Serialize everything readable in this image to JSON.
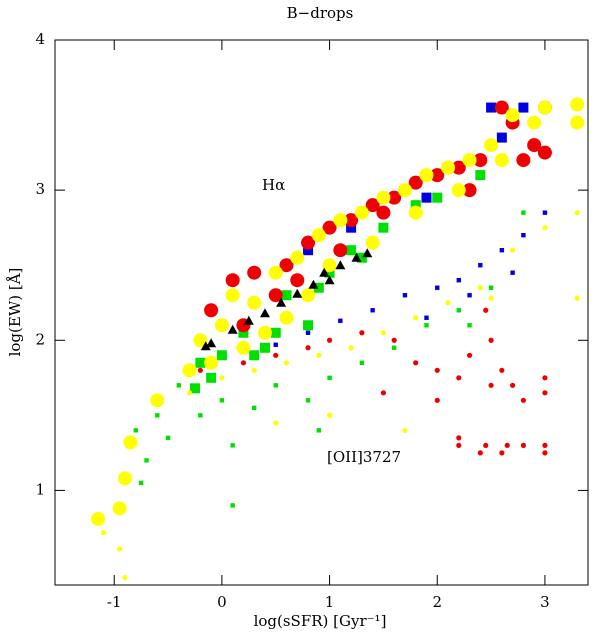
{
  "chart_data": {
    "type": "scatter",
    "title": "B−drops",
    "x_label": "log(sSFR)  [Gyr⁻¹]",
    "y_label": "log(EW)  [Å]",
    "annotations": [
      "Hα",
      "[OII]3727"
    ],
    "xlim": [
      -1.55,
      3.4
    ],
    "ylim": [
      0.37,
      4
    ],
    "xticks": [
      -1,
      0,
      1,
      2,
      3
    ],
    "yticks": [
      1,
      2,
      3,
      4
    ],
    "series": [
      {
        "color": "#00e000",
        "marker": "square",
        "size": "large",
        "x": [
          -0.3,
          -0.2,
          -0.1,
          0.0,
          0.2,
          0.4,
          0.6,
          0.8,
          1.0,
          1.2,
          1.5,
          1.8,
          2.0,
          2.4,
          2.7,
          0.5,
          0.9,
          -0.25,
          0.3,
          1.3
        ],
        "y": [
          1.8,
          1.85,
          1.75,
          1.9,
          2.05,
          1.95,
          2.3,
          2.1,
          2.45,
          2.6,
          2.75,
          2.9,
          2.95,
          3.1,
          3.45,
          2.05,
          2.35,
          1.68,
          1.9,
          2.55
        ]
      },
      {
        "color": "#0000e0",
        "marker": "square",
        "size": "large",
        "x": [
          0.8,
          1.2,
          1.6,
          2.0,
          2.3,
          2.6,
          2.8,
          1.9,
          2.5
        ],
        "y": [
          2.6,
          2.75,
          2.95,
          3.1,
          3.2,
          3.35,
          3.55,
          2.95,
          3.55
        ]
      },
      {
        "color": "#ee0000",
        "marker": "circle",
        "size": "large",
        "x": [
          -0.1,
          0.1,
          0.3,
          0.5,
          0.6,
          0.8,
          1.0,
          1.2,
          1.4,
          1.6,
          1.8,
          2.0,
          2.2,
          2.4,
          2.6,
          2.7,
          2.9,
          3.0,
          3.0,
          0.2,
          0.7,
          1.1,
          1.5,
          2.3,
          2.8
        ],
        "y": [
          2.2,
          2.4,
          2.45,
          2.3,
          2.5,
          2.65,
          2.75,
          2.8,
          2.9,
          2.95,
          3.05,
          3.1,
          3.15,
          3.2,
          3.55,
          3.45,
          3.3,
          3.25,
          3.55,
          2.1,
          2.4,
          2.6,
          2.85,
          3.0,
          3.2
        ]
      },
      {
        "color": "#ffff00",
        "marker": "circle",
        "size": "large",
        "x": [
          -1.15,
          -0.95,
          -0.9,
          -0.85,
          -0.6,
          -0.3,
          -0.2,
          0.0,
          0.1,
          0.3,
          0.5,
          0.7,
          0.9,
          1.1,
          1.3,
          1.5,
          1.7,
          1.9,
          2.1,
          2.3,
          2.5,
          2.7,
          2.9,
          3.0,
          3.3,
          3.3,
          0.2,
          0.6,
          1.0,
          1.4,
          1.8,
          2.2,
          2.6,
          -0.1,
          0.4,
          0.8
        ],
        "y": [
          0.81,
          0.88,
          1.08,
          1.32,
          1.6,
          1.8,
          2.0,
          2.1,
          2.3,
          2.25,
          2.45,
          2.55,
          2.7,
          2.8,
          2.85,
          2.95,
          3.0,
          3.1,
          3.15,
          3.2,
          3.3,
          3.5,
          3.45,
          3.55,
          3.45,
          3.57,
          1.95,
          2.15,
          2.5,
          2.65,
          2.85,
          3.0,
          3.2,
          1.85,
          2.05,
          2.3
        ]
      },
      {
        "color": "#00e000",
        "marker": "square",
        "size": "small",
        "x": [
          -0.8,
          -0.7,
          -0.6,
          -0.5,
          -0.4,
          -0.2,
          0.0,
          0.1,
          0.3,
          0.5,
          0.8,
          1.0,
          1.3,
          1.6,
          1.9,
          2.2,
          2.5,
          2.8,
          -0.75,
          0.1,
          0.9,
          2.3
        ],
        "y": [
          1.4,
          1.2,
          1.5,
          1.35,
          1.7,
          1.5,
          1.6,
          0.9,
          1.55,
          1.7,
          1.6,
          1.75,
          1.85,
          1.95,
          2.1,
          2.2,
          2.35,
          2.85,
          1.05,
          1.3,
          1.4,
          2.1
        ]
      },
      {
        "color": "#0000e0",
        "marker": "square",
        "size": "small",
        "x": [
          0.5,
          0.8,
          1.1,
          1.4,
          1.7,
          2.0,
          2.2,
          2.4,
          2.6,
          2.8,
          3.0,
          1.9,
          2.3,
          2.7
        ],
        "y": [
          1.97,
          2.05,
          2.13,
          2.2,
          2.3,
          2.35,
          2.4,
          2.5,
          2.6,
          2.7,
          2.85,
          2.15,
          2.3,
          2.45
        ]
      },
      {
        "color": "#ee0000",
        "marker": "circle",
        "size": "small",
        "x": [
          -0.2,
          0.2,
          0.5,
          0.8,
          1.0,
          1.3,
          1.6,
          1.8,
          2.0,
          2.2,
          2.2,
          2.2,
          2.4,
          2.45,
          2.5,
          2.6,
          2.65,
          2.8,
          3.0,
          3.0,
          3.0,
          2.45,
          2.6,
          2.8,
          3.0,
          2.3,
          2.5,
          2.7,
          1.5,
          2.0
        ],
        "y": [
          1.8,
          1.85,
          1.9,
          1.95,
          2.0,
          2.05,
          2.0,
          1.85,
          1.8,
          1.75,
          1.35,
          1.3,
          1.25,
          1.3,
          1.7,
          1.25,
          1.3,
          1.3,
          1.3,
          1.25,
          1.75,
          2.2,
          1.8,
          1.6,
          1.65,
          1.9,
          2.0,
          1.7,
          1.65,
          1.6
        ]
      },
      {
        "color": "#ffff00",
        "marker": "circle",
        "size": "small",
        "x": [
          -1.1,
          -0.95,
          -0.9,
          -0.3,
          0.0,
          0.3,
          0.6,
          0.9,
          1.2,
          1.5,
          1.8,
          2.1,
          2.4,
          2.7,
          3.0,
          3.3,
          3.3,
          1.0,
          1.7,
          2.5,
          0.5
        ],
        "y": [
          0.72,
          0.61,
          0.42,
          1.65,
          1.75,
          1.8,
          1.85,
          1.9,
          1.95,
          2.05,
          2.15,
          2.25,
          2.35,
          2.6,
          2.75,
          2.85,
          2.28,
          1.5,
          1.4,
          2.28,
          1.45
        ]
      },
      {
        "color": "#000000",
        "marker": "triangle",
        "size": "large",
        "x": [
          -0.15,
          -0.1,
          0.1,
          0.25,
          0.4,
          0.55,
          0.7,
          0.85,
          0.95,
          1.1,
          1.25,
          1.35,
          1.0
        ],
        "y": [
          1.96,
          1.98,
          2.07,
          2.13,
          2.18,
          2.25,
          2.31,
          2.37,
          2.45,
          2.5,
          2.55,
          2.58,
          2.4
        ]
      }
    ]
  }
}
